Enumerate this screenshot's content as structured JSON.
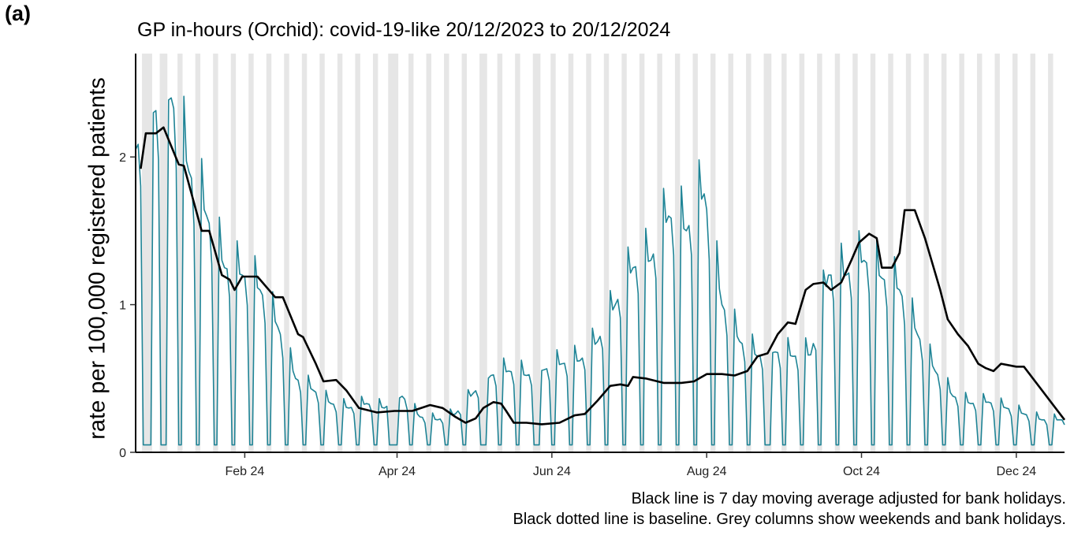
{
  "panel_label": "(a)",
  "title": "GP in-hours (Orchid): covid-19-like 20/12/2023 to 20/12/2024",
  "notes": [
    "Black line is 7 day moving average adjusted for bank holidays.",
    "Black dotted line is baseline. Grey columns show weekends and bank holidays."
  ],
  "chart_data": {
    "type": "line",
    "title": "GP in-hours (Orchid): covid-19-like 20/12/2023 to 20/12/2024",
    "xlabel": "",
    "ylabel": "rate per 100,000 registered patients",
    "xlim": [
      "2023-12-20",
      "2024-12-20"
    ],
    "ylim": [
      0,
      2.7
    ],
    "x_ticks": [
      {
        "date": "2024-02-01",
        "label": "Feb 24"
      },
      {
        "date": "2024-04-01",
        "label": "Apr 24"
      },
      {
        "date": "2024-06-01",
        "label": "Jun 24"
      },
      {
        "date": "2024-08-01",
        "label": "Aug 24"
      },
      {
        "date": "2024-10-01",
        "label": "Oct 24"
      },
      {
        "date": "2024-12-01",
        "label": "Dec 24"
      }
    ],
    "y_ticks": [
      0,
      1,
      2
    ],
    "grey_columns": "weekends and bank holidays",
    "bank_holidays": [
      "2023-12-25",
      "2023-12-26",
      "2024-01-01",
      "2024-03-29",
      "2024-04-01",
      "2024-05-06",
      "2024-05-27",
      "2024-08-26"
    ],
    "colors": {
      "daily": "#1f8496",
      "moving_average": "#000000",
      "columns": "#e6e6e6"
    },
    "series": [
      {
        "name": "daily rate",
        "weekday_anchors": [
          [
            "2023-12-20",
            2.05
          ],
          [
            "2023-12-27",
            2.3
          ],
          [
            "2024-01-03",
            2.4
          ],
          [
            "2024-01-10",
            1.9
          ],
          [
            "2024-01-17",
            1.6
          ],
          [
            "2024-01-24",
            1.25
          ],
          [
            "2024-01-31",
            1.2
          ],
          [
            "2024-02-07",
            1.1
          ],
          [
            "2024-02-14",
            0.85
          ],
          [
            "2024-02-21",
            0.5
          ],
          [
            "2024-02-28",
            0.42
          ],
          [
            "2024-03-06",
            0.33
          ],
          [
            "2024-03-13",
            0.3
          ],
          [
            "2024-03-20",
            0.33
          ],
          [
            "2024-03-27",
            0.3
          ],
          [
            "2024-04-03",
            0.38
          ],
          [
            "2024-04-10",
            0.24
          ],
          [
            "2024-04-17",
            0.22
          ],
          [
            "2024-04-24",
            0.26
          ],
          [
            "2024-05-01",
            0.4
          ],
          [
            "2024-05-08",
            0.52
          ],
          [
            "2024-05-15",
            0.55
          ],
          [
            "2024-05-22",
            0.52
          ],
          [
            "2024-05-29",
            0.56
          ],
          [
            "2024-06-05",
            0.6
          ],
          [
            "2024-06-12",
            0.62
          ],
          [
            "2024-06-19",
            0.75
          ],
          [
            "2024-06-26",
            1.0
          ],
          [
            "2024-07-03",
            1.25
          ],
          [
            "2024-07-10",
            1.3
          ],
          [
            "2024-07-17",
            1.6
          ],
          [
            "2024-07-24",
            1.5
          ],
          [
            "2024-07-31",
            1.75
          ],
          [
            "2024-08-07",
            1.0
          ],
          [
            "2024-08-14",
            0.75
          ],
          [
            "2024-08-21",
            0.65
          ],
          [
            "2024-08-28",
            0.68
          ],
          [
            "2024-09-04",
            0.65
          ],
          [
            "2024-09-11",
            0.66
          ],
          [
            "2024-09-18",
            1.2
          ],
          [
            "2024-09-25",
            1.2
          ],
          [
            "2024-10-02",
            1.3
          ],
          [
            "2024-10-09",
            1.18
          ],
          [
            "2024-10-16",
            1.1
          ],
          [
            "2024-10-23",
            0.8
          ],
          [
            "2024-10-30",
            0.55
          ],
          [
            "2024-11-06",
            0.38
          ],
          [
            "2024-11-13",
            0.33
          ],
          [
            "2024-11-20",
            0.34
          ],
          [
            "2024-11-27",
            0.3
          ],
          [
            "2024-12-04",
            0.26
          ],
          [
            "2024-12-11",
            0.22
          ],
          [
            "2024-12-20",
            0.22
          ]
        ],
        "weekend_value": 0.05
      },
      {
        "name": "7 day moving average",
        "points": [
          [
            "2023-12-22",
            1.92
          ],
          [
            "2023-12-24",
            2.16
          ],
          [
            "2023-12-28",
            2.16
          ],
          [
            "2023-12-31",
            2.2
          ],
          [
            "2024-01-06",
            1.95
          ],
          [
            "2024-01-08",
            1.94
          ],
          [
            "2024-01-15",
            1.5
          ],
          [
            "2024-01-18",
            1.5
          ],
          [
            "2024-01-23",
            1.2
          ],
          [
            "2024-01-26",
            1.17
          ],
          [
            "2024-01-28",
            1.1
          ],
          [
            "2024-01-31",
            1.19
          ],
          [
            "2024-02-06",
            1.19
          ],
          [
            "2024-02-13",
            1.05
          ],
          [
            "2024-02-16",
            1.05
          ],
          [
            "2024-02-22",
            0.8
          ],
          [
            "2024-02-24",
            0.78
          ],
          [
            "2024-02-29",
            0.6
          ],
          [
            "2024-03-03",
            0.48
          ],
          [
            "2024-03-08",
            0.49
          ],
          [
            "2024-03-12",
            0.42
          ],
          [
            "2024-03-17",
            0.3
          ],
          [
            "2024-03-24",
            0.27
          ],
          [
            "2024-03-31",
            0.28
          ],
          [
            "2024-04-07",
            0.28
          ],
          [
            "2024-04-14",
            0.32
          ],
          [
            "2024-04-19",
            0.3
          ],
          [
            "2024-04-24",
            0.24
          ],
          [
            "2024-04-28",
            0.2
          ],
          [
            "2024-05-02",
            0.23
          ],
          [
            "2024-05-05",
            0.3
          ],
          [
            "2024-05-09",
            0.34
          ],
          [
            "2024-05-12",
            0.33
          ],
          [
            "2024-05-14",
            0.28
          ],
          [
            "2024-05-17",
            0.2
          ],
          [
            "2024-05-22",
            0.2
          ],
          [
            "2024-05-28",
            0.19
          ],
          [
            "2024-06-04",
            0.2
          ],
          [
            "2024-06-10",
            0.25
          ],
          [
            "2024-06-14",
            0.26
          ],
          [
            "2024-06-19",
            0.35
          ],
          [
            "2024-06-24",
            0.45
          ],
          [
            "2024-06-28",
            0.46
          ],
          [
            "2024-07-01",
            0.45
          ],
          [
            "2024-07-03",
            0.51
          ],
          [
            "2024-07-08",
            0.5
          ],
          [
            "2024-07-15",
            0.47
          ],
          [
            "2024-07-22",
            0.47
          ],
          [
            "2024-07-27",
            0.48
          ],
          [
            "2024-08-01",
            0.53
          ],
          [
            "2024-08-07",
            0.53
          ],
          [
            "2024-08-12",
            0.52
          ],
          [
            "2024-08-17",
            0.55
          ],
          [
            "2024-08-21",
            0.65
          ],
          [
            "2024-08-25",
            0.67
          ],
          [
            "2024-08-29",
            0.8
          ],
          [
            "2024-09-02",
            0.88
          ],
          [
            "2024-09-05",
            0.87
          ],
          [
            "2024-09-09",
            1.1
          ],
          [
            "2024-09-12",
            1.14
          ],
          [
            "2024-09-16",
            1.15
          ],
          [
            "2024-09-19",
            1.1
          ],
          [
            "2024-09-23",
            1.15
          ],
          [
            "2024-09-27",
            1.3
          ],
          [
            "2024-09-30",
            1.42
          ],
          [
            "2024-10-04",
            1.48
          ],
          [
            "2024-10-07",
            1.45
          ],
          [
            "2024-10-09",
            1.25
          ],
          [
            "2024-10-13",
            1.25
          ],
          [
            "2024-10-16",
            1.35
          ],
          [
            "2024-10-18",
            1.64
          ],
          [
            "2024-10-22",
            1.64
          ],
          [
            "2024-10-26",
            1.45
          ],
          [
            "2024-11-01",
            1.1
          ],
          [
            "2024-11-04",
            0.9
          ],
          [
            "2024-11-08",
            0.8
          ],
          [
            "2024-11-12",
            0.72
          ],
          [
            "2024-11-16",
            0.6
          ],
          [
            "2024-11-19",
            0.57
          ],
          [
            "2024-11-22",
            0.55
          ],
          [
            "2024-11-25",
            0.6
          ],
          [
            "2024-12-01",
            0.58
          ],
          [
            "2024-12-04",
            0.58
          ],
          [
            "2024-12-20",
            0.22
          ]
        ]
      }
    ]
  }
}
